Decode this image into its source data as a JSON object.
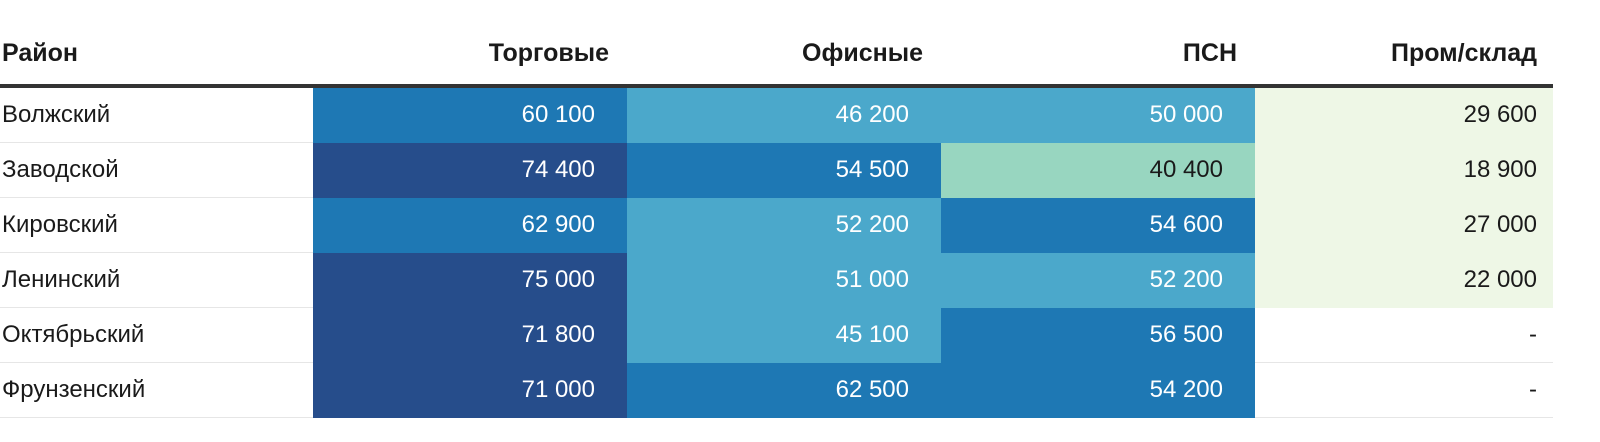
{
  "colors": {
    "dark": "#264d8b",
    "mid": "#1e78b4",
    "light": "#4ba8cb",
    "mint": "#98d6c0",
    "pale": "#eef7e6",
    "none": "#ffffff"
  },
  "headers": [
    "Район",
    "Торговые",
    "Офисные",
    "ПСН",
    "Пром/склад"
  ],
  "rows": [
    {
      "district": "Волжский",
      "cells": [
        {
          "v": "60 100",
          "c": "mid"
        },
        {
          "v": "46 200",
          "c": "light"
        },
        {
          "v": "50 000",
          "c": "light"
        },
        {
          "v": "29 600",
          "c": "pale"
        }
      ]
    },
    {
      "district": "Заводской",
      "cells": [
        {
          "v": "74 400",
          "c": "dark"
        },
        {
          "v": "54 500",
          "c": "mid"
        },
        {
          "v": "40 400",
          "c": "mint"
        },
        {
          "v": "18 900",
          "c": "pale"
        }
      ]
    },
    {
      "district": "Кировский",
      "cells": [
        {
          "v": "62 900",
          "c": "mid"
        },
        {
          "v": "52 200",
          "c": "light"
        },
        {
          "v": "54 600",
          "c": "mid"
        },
        {
          "v": "27 000",
          "c": "pale"
        }
      ]
    },
    {
      "district": "Ленинский",
      "cells": [
        {
          "v": "75 000",
          "c": "dark"
        },
        {
          "v": "51 000",
          "c": "light"
        },
        {
          "v": "52 200",
          "c": "light"
        },
        {
          "v": "22 000",
          "c": "pale"
        }
      ]
    },
    {
      "district": "Октябрьский",
      "cells": [
        {
          "v": "71 800",
          "c": "dark"
        },
        {
          "v": "45 100",
          "c": "light"
        },
        {
          "v": "56 500",
          "c": "mid"
        },
        {
          "v": "-",
          "c": "none"
        }
      ]
    },
    {
      "district": "Фрунзенский",
      "cells": [
        {
          "v": "71 000",
          "c": "dark"
        },
        {
          "v": "62 500",
          "c": "mid"
        },
        {
          "v": "54 200",
          "c": "mid"
        },
        {
          "v": "-",
          "c": "none"
        }
      ]
    }
  ]
}
